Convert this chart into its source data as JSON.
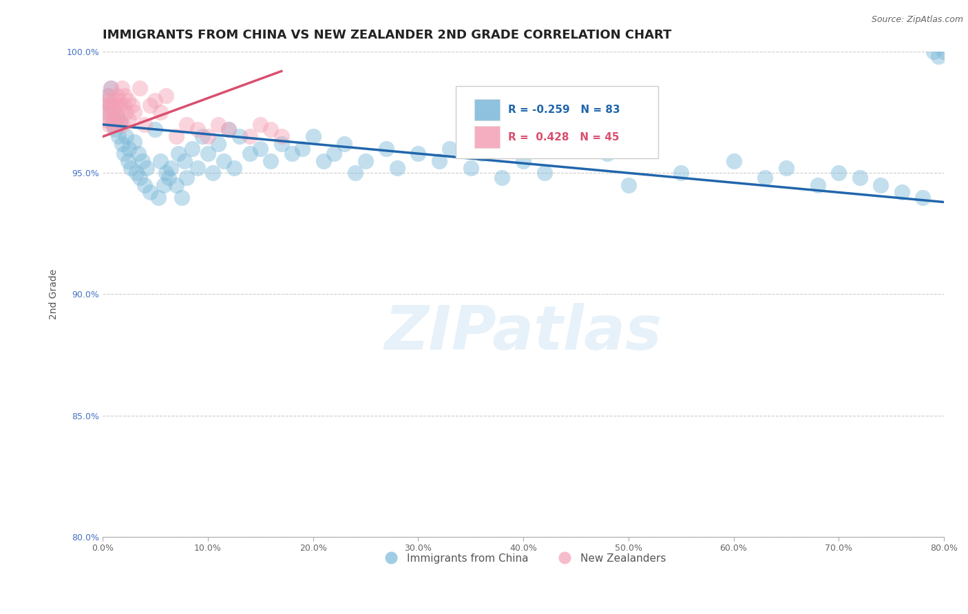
{
  "title": "IMMIGRANTS FROM CHINA VS NEW ZEALANDER 2ND GRADE CORRELATION CHART",
  "source_text": "Source: ZipAtlas.com",
  "xlabel": "",
  "ylabel": "2nd Grade",
  "xlim": [
    0.0,
    80.0
  ],
  "ylim": [
    80.0,
    100.0
  ],
  "xticks": [
    0.0,
    10.0,
    20.0,
    30.0,
    40.0,
    50.0,
    60.0,
    70.0,
    80.0
  ],
  "yticks": [
    80.0,
    85.0,
    90.0,
    95.0,
    100.0
  ],
  "xtick_labels": [
    "0.0%",
    "10.0%",
    "20.0%",
    "30.0%",
    "40.0%",
    "50.0%",
    "60.0%",
    "70.0%",
    "80.0%"
  ],
  "ytick_labels": [
    "80.0%",
    "85.0%",
    "90.0%",
    "95.0%",
    "100.0%"
  ],
  "legend_labels": [
    "Immigrants from China",
    "New Zealanders"
  ],
  "blue_color": "#7ab8d9",
  "pink_color": "#f4a0b5",
  "blue_line_color": "#2166ac",
  "pink_line_color": "#d94f6e",
  "R_blue": -0.259,
  "N_blue": 83,
  "R_pink": 0.428,
  "N_pink": 45,
  "blue_scatter_x": [
    0.3,
    0.5,
    0.7,
    0.8,
    1.0,
    1.2,
    1.4,
    1.5,
    1.6,
    1.8,
    2.0,
    2.2,
    2.4,
    2.5,
    2.7,
    3.0,
    3.2,
    3.4,
    3.5,
    3.8,
    4.0,
    4.2,
    4.5,
    5.0,
    5.3,
    5.5,
    5.8,
    6.0,
    6.3,
    6.5,
    7.0,
    7.2,
    7.5,
    7.8,
    8.0,
    8.5,
    9.0,
    9.5,
    10.0,
    10.5,
    11.0,
    11.5,
    12.0,
    12.5,
    13.0,
    14.0,
    15.0,
    16.0,
    17.0,
    18.0,
    19.0,
    20.0,
    21.0,
    22.0,
    23.0,
    24.0,
    25.0,
    27.0,
    28.0,
    30.0,
    32.0,
    33.0,
    35.0,
    36.0,
    38.0,
    40.0,
    42.0,
    45.0,
    48.0,
    50.0,
    55.0,
    60.0,
    63.0,
    65.0,
    68.0,
    70.0,
    72.0,
    74.0,
    76.0,
    78.0,
    79.0,
    79.5,
    80.0
  ],
  "blue_scatter_y": [
    97.5,
    98.2,
    97.8,
    98.5,
    97.0,
    96.8,
    97.3,
    96.5,
    97.1,
    96.2,
    95.8,
    96.5,
    95.5,
    96.0,
    95.2,
    96.3,
    95.0,
    95.8,
    94.8,
    95.5,
    94.5,
    95.2,
    94.2,
    96.8,
    94.0,
    95.5,
    94.5,
    95.0,
    94.8,
    95.2,
    94.5,
    95.8,
    94.0,
    95.5,
    94.8,
    96.0,
    95.2,
    96.5,
    95.8,
    95.0,
    96.2,
    95.5,
    96.8,
    95.2,
    96.5,
    95.8,
    96.0,
    95.5,
    96.2,
    95.8,
    96.0,
    96.5,
    95.5,
    95.8,
    96.2,
    95.0,
    95.5,
    96.0,
    95.2,
    95.8,
    95.5,
    96.0,
    95.2,
    95.8,
    94.8,
    95.5,
    95.0,
    96.5,
    95.8,
    94.5,
    95.0,
    95.5,
    94.8,
    95.2,
    94.5,
    95.0,
    94.8,
    94.5,
    94.2,
    94.0,
    100.0,
    99.8,
    100.0
  ],
  "pink_scatter_x": [
    0.2,
    0.3,
    0.4,
    0.5,
    0.5,
    0.6,
    0.7,
    0.8,
    0.8,
    0.9,
    1.0,
    1.0,
    1.1,
    1.2,
    1.3,
    1.4,
    1.4,
    1.5,
    1.6,
    1.7,
    1.8,
    1.9,
    2.0,
    2.1,
    2.2,
    2.4,
    2.5,
    2.8,
    3.0,
    3.5,
    4.0,
    4.5,
    5.0,
    5.5,
    6.0,
    7.0,
    8.0,
    9.0,
    10.0,
    11.0,
    12.0,
    14.0,
    15.0,
    16.0,
    17.0
  ],
  "pink_scatter_y": [
    97.2,
    97.8,
    98.0,
    97.5,
    98.2,
    97.0,
    97.8,
    97.2,
    98.5,
    97.6,
    97.0,
    98.0,
    97.3,
    97.8,
    97.0,
    98.2,
    97.5,
    98.0,
    97.8,
    97.2,
    98.5,
    97.0,
    97.8,
    98.2,
    97.5,
    98.0,
    97.2,
    97.8,
    97.5,
    98.5,
    97.0,
    97.8,
    98.0,
    97.5,
    98.2,
    96.5,
    97.0,
    96.8,
    96.5,
    97.0,
    96.8,
    96.5,
    97.0,
    96.8,
    96.5
  ],
  "blue_trendline_x0": 0.0,
  "blue_trendline_y0": 97.0,
  "blue_trendline_x1": 80.0,
  "blue_trendline_y1": 93.8,
  "pink_trendline_x0": 0.0,
  "pink_trendline_y0": 96.5,
  "pink_trendline_x1": 17.0,
  "pink_trendline_y1": 99.2,
  "watermark_text": "ZIPatlas",
  "title_fontsize": 13,
  "axis_label_fontsize": 10,
  "tick_fontsize": 9
}
